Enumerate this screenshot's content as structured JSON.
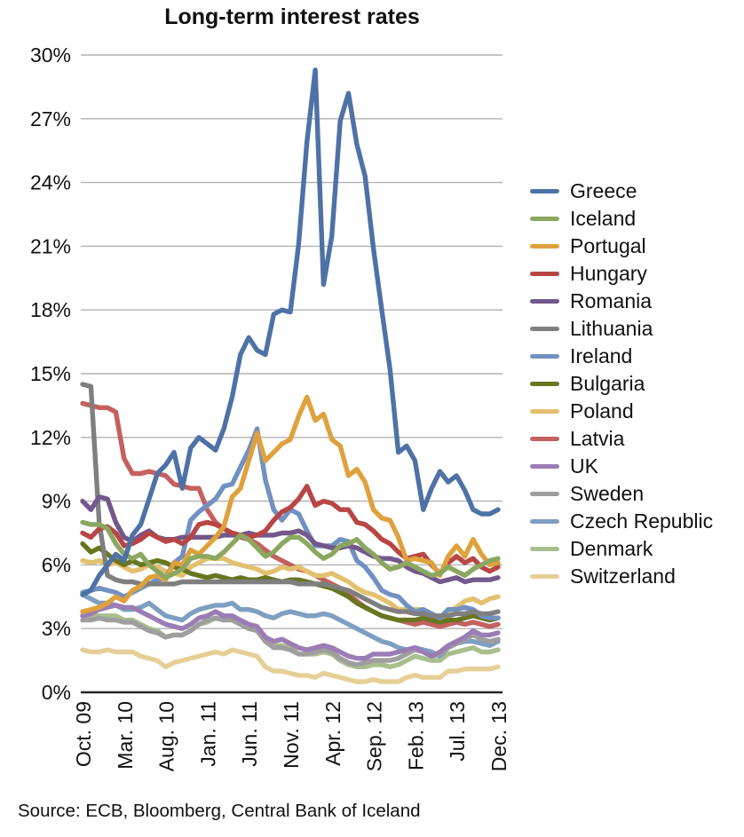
{
  "title": "Long-term interest rates",
  "source": {
    "text": "Source: ECB, Bloomberg, Central Bank of Iceland"
  },
  "chart_data": {
    "type": "line",
    "title": "Long-term interest rates",
    "grid": true,
    "legend_position": "right",
    "y_axis": {
      "min": 0,
      "max": 30,
      "step": 3,
      "tick_labels": [
        "30%",
        "27%",
        "24%",
        "21%",
        "18%",
        "15%",
        "12%",
        "9%",
        "6%",
        "3%",
        "0%"
      ]
    },
    "x_axis": {
      "n_points": 51,
      "months_between_ticks": 5,
      "tick_labels": [
        "Oct. 09",
        "Mar. 10",
        "Aug. 10",
        "Jan. 11",
        "Jun. 11",
        "Nov. 11",
        "Apr. 12",
        "Sep. 12",
        "Feb. 13",
        "Jul. 13",
        "Dec. 13"
      ]
    },
    "series": [
      {
        "name": "Greece",
        "color": "#4E72A6",
        "values": [
          4.6,
          4.8,
          5.5,
          6.0,
          6.5,
          6.2,
          7.4,
          7.9,
          9.1,
          10.3,
          10.7,
          11.3,
          9.6,
          11.5,
          12.0,
          11.7,
          11.4,
          12.4,
          13.9,
          15.9,
          16.7,
          16.1,
          15.9,
          17.8,
          18.0,
          17.9,
          21.1,
          25.9,
          29.3,
          19.2,
          21.5,
          26.9,
          28.2,
          25.8,
          24.3,
          20.9,
          18.0,
          15.2,
          11.3,
          11.6,
          10.9,
          8.6,
          9.6,
          10.4,
          9.9,
          10.2,
          9.5,
          8.6,
          8.4,
          8.4,
          8.6
        ]
      },
      {
        "name": "Iceland",
        "color": "#8BA760",
        "values": [
          8.0,
          7.9,
          7.9,
          7.7,
          7.0,
          6.5,
          6.3,
          6.5,
          6.0,
          5.7,
          5.4,
          5.6,
          5.8,
          6.3,
          6.4,
          6.4,
          6.3,
          6.6,
          7.0,
          7.4,
          7.2,
          6.8,
          6.4,
          6.6,
          7.0,
          7.3,
          7.3,
          7.0,
          6.6,
          6.3,
          6.5,
          6.9,
          7.0,
          7.2,
          6.8,
          6.5,
          6.1,
          5.8,
          5.9,
          6.1,
          5.9,
          5.7,
          5.5,
          5.6,
          5.9,
          5.7,
          5.5,
          5.8,
          6.0,
          6.2,
          6.3
        ]
      },
      {
        "name": "Portugal",
        "color": "#DFA13C",
        "values": [
          3.8,
          3.9,
          4.0,
          4.2,
          4.5,
          4.3,
          4.8,
          5.0,
          5.4,
          5.5,
          5.3,
          6.1,
          6.0,
          6.7,
          6.5,
          6.9,
          7.3,
          7.8,
          9.2,
          9.6,
          10.9,
          12.2,
          10.9,
          11.3,
          11.7,
          11.9,
          13.0,
          13.9,
          12.8,
          13.1,
          11.9,
          11.6,
          10.2,
          10.5,
          9.9,
          8.6,
          8.2,
          8.1,
          7.3,
          6.2,
          6.3,
          6.2,
          6.1,
          5.5,
          6.4,
          6.9,
          6.4,
          7.2,
          6.5,
          6.0,
          6.1
        ]
      },
      {
        "name": "Hungary",
        "color": "#B84645",
        "values": [
          7.5,
          7.3,
          7.7,
          7.8,
          7.5,
          6.9,
          7.0,
          7.2,
          7.5,
          7.3,
          7.1,
          7.2,
          7.0,
          7.3,
          7.9,
          8.0,
          7.9,
          7.7,
          7.5,
          7.4,
          7.3,
          7.4,
          7.6,
          8.1,
          8.5,
          8.7,
          9.1,
          9.7,
          8.8,
          9.0,
          8.9,
          8.6,
          8.6,
          8.0,
          7.9,
          7.6,
          7.2,
          7.0,
          6.6,
          6.3,
          6.4,
          6.5,
          6.0,
          5.6,
          6.1,
          6.4,
          6.1,
          6.3,
          5.9,
          5.7,
          5.9
        ]
      },
      {
        "name": "Romania",
        "color": "#73588C",
        "values": [
          9.0,
          8.6,
          9.2,
          9.1,
          8.0,
          7.3,
          7.1,
          7.4,
          7.6,
          7.3,
          7.2,
          7.2,
          7.3,
          7.3,
          7.3,
          7.3,
          7.3,
          7.4,
          7.4,
          7.4,
          7.5,
          7.4,
          7.4,
          7.4,
          7.5,
          7.5,
          7.6,
          7.4,
          7.0,
          6.9,
          6.8,
          6.8,
          6.9,
          6.8,
          6.6,
          6.4,
          6.3,
          6.3,
          6.2,
          5.9,
          5.7,
          5.6,
          5.4,
          5.2,
          5.3,
          5.4,
          5.2,
          5.3,
          5.3,
          5.3,
          5.4
        ]
      },
      {
        "name": "Lithuania",
        "color": "#7F7F7F",
        "values": [
          14.5,
          14.4,
          8.0,
          5.5,
          5.3,
          5.2,
          5.2,
          5.1,
          5.1,
          5.1,
          5.1,
          5.1,
          5.2,
          5.2,
          5.2,
          5.2,
          5.2,
          5.2,
          5.2,
          5.2,
          5.2,
          5.2,
          5.2,
          5.2,
          5.2,
          5.2,
          5.1,
          5.1,
          5.1,
          5.1,
          5.0,
          4.9,
          4.8,
          4.6,
          4.4,
          4.2,
          4.0,
          3.9,
          3.8,
          3.8,
          3.7,
          3.7,
          3.6,
          3.6,
          3.6,
          3.7,
          3.7,
          3.8,
          3.7,
          3.7,
          3.8
        ]
      },
      {
        "name": "Ireland",
        "color": "#7191C1",
        "values": [
          4.7,
          4.8,
          4.9,
          4.8,
          4.7,
          4.5,
          4.7,
          4.9,
          5.1,
          5.3,
          5.4,
          6.1,
          6.4,
          8.1,
          8.5,
          8.8,
          9.1,
          9.7,
          9.8,
          10.6,
          11.4,
          12.4,
          10.0,
          8.6,
          8.1,
          8.6,
          8.4,
          7.6,
          6.9,
          6.9,
          6.9,
          7.2,
          7.1,
          6.2,
          5.9,
          5.4,
          4.8,
          4.6,
          4.5,
          4.1,
          3.8,
          3.9,
          3.7,
          3.5,
          3.9,
          3.9,
          4.0,
          3.9,
          3.6,
          3.5,
          3.5
        ]
      },
      {
        "name": "Bulgaria",
        "color": "#67761F",
        "values": [
          7.0,
          6.6,
          6.8,
          6.5,
          6.2,
          6.0,
          6.2,
          6.0,
          6.1,
          6.2,
          6.1,
          5.9,
          5.8,
          5.6,
          5.5,
          5.4,
          5.5,
          5.4,
          5.3,
          5.4,
          5.3,
          5.3,
          5.4,
          5.3,
          5.2,
          5.3,
          5.3,
          5.2,
          5.1,
          5.0,
          4.9,
          4.7,
          4.5,
          4.2,
          4.0,
          3.8,
          3.6,
          3.5,
          3.4,
          3.4,
          3.4,
          3.5,
          3.4,
          3.3,
          3.4,
          3.4,
          3.5,
          3.6,
          3.5,
          3.4,
          3.5
        ]
      },
      {
        "name": "Poland",
        "color": "#E2C06E",
        "values": [
          6.2,
          6.1,
          6.2,
          6.0,
          6.1,
          5.9,
          5.7,
          5.8,
          6.0,
          5.9,
          5.7,
          5.6,
          5.5,
          5.9,
          6.1,
          6.3,
          6.3,
          6.3,
          6.1,
          6.0,
          5.9,
          5.8,
          5.6,
          5.7,
          5.9,
          5.8,
          5.9,
          5.7,
          5.5,
          5.5,
          5.6,
          5.4,
          5.2,
          4.9,
          4.7,
          4.6,
          4.4,
          4.2,
          3.9,
          3.9,
          3.9,
          3.9,
          3.6,
          3.3,
          3.8,
          4.0,
          4.3,
          4.4,
          4.2,
          4.4,
          4.5
        ]
      },
      {
        "name": "Latvia",
        "color": "#C4605E",
        "values": [
          13.6,
          13.5,
          13.4,
          13.4,
          13.2,
          11.0,
          10.3,
          10.3,
          10.4,
          10.3,
          10.2,
          9.8,
          9.7,
          9.6,
          9.6,
          8.6,
          8.0,
          7.7,
          7.5,
          7.3,
          7.2,
          7.0,
          6.7,
          6.4,
          6.2,
          6.0,
          5.8,
          5.7,
          5.5,
          5.3,
          5.1,
          4.9,
          4.6,
          4.3,
          4.0,
          3.8,
          3.6,
          3.5,
          3.4,
          3.3,
          3.2,
          3.3,
          3.2,
          3.1,
          3.2,
          3.3,
          3.2,
          3.3,
          3.2,
          3.1,
          3.2
        ]
      },
      {
        "name": "UK",
        "color": "#9B7DB5",
        "values": [
          3.6,
          3.7,
          3.9,
          4.0,
          4.1,
          4.0,
          4.0,
          3.8,
          3.6,
          3.4,
          3.2,
          3.1,
          3.0,
          3.2,
          3.5,
          3.6,
          3.8,
          3.6,
          3.6,
          3.4,
          3.2,
          3.1,
          2.6,
          2.4,
          2.5,
          2.3,
          2.1,
          2.0,
          2.1,
          2.2,
          2.1,
          1.9,
          1.7,
          1.6,
          1.6,
          1.8,
          1.8,
          1.8,
          1.9,
          2.0,
          2.1,
          1.9,
          1.7,
          1.9,
          2.2,
          2.4,
          2.6,
          2.9,
          2.7,
          2.7,
          2.8
        ]
      },
      {
        "name": "Sweden",
        "color": "#9E9E9E",
        "values": [
          3.4,
          3.4,
          3.5,
          3.4,
          3.4,
          3.3,
          3.3,
          3.1,
          2.9,
          2.8,
          2.6,
          2.7,
          2.7,
          2.9,
          3.2,
          3.4,
          3.5,
          3.4,
          3.4,
          3.2,
          3.0,
          2.9,
          2.4,
          2.1,
          2.1,
          2.0,
          1.8,
          1.8,
          1.9,
          2.0,
          1.9,
          1.6,
          1.4,
          1.3,
          1.4,
          1.5,
          1.5,
          1.5,
          1.6,
          1.8,
          2.0,
          1.9,
          1.7,
          1.8,
          2.1,
          2.3,
          2.5,
          2.7,
          2.5,
          2.4,
          2.5
        ]
      },
      {
        "name": "Czech Republic",
        "color": "#7E9FC1",
        "values": [
          4.6,
          4.4,
          4.2,
          4.2,
          4.1,
          3.9,
          3.9,
          4.0,
          4.2,
          3.9,
          3.6,
          3.5,
          3.4,
          3.7,
          3.9,
          4.0,
          4.1,
          4.1,
          4.2,
          3.9,
          3.9,
          3.8,
          3.6,
          3.5,
          3.7,
          3.8,
          3.7,
          3.6,
          3.6,
          3.7,
          3.6,
          3.4,
          3.2,
          3.0,
          2.8,
          2.6,
          2.4,
          2.3,
          2.1,
          2.0,
          2.1,
          2.0,
          1.9,
          1.7,
          2.1,
          2.3,
          2.4,
          2.4,
          2.3,
          2.2,
          2.4
        ]
      },
      {
        "name": "Denmark",
        "color": "#A9BE8D",
        "values": [
          3.6,
          3.6,
          3.6,
          3.6,
          3.6,
          3.4,
          3.4,
          3.2,
          3.0,
          2.9,
          2.6,
          2.7,
          2.7,
          2.9,
          3.2,
          3.3,
          3.5,
          3.4,
          3.5,
          3.3,
          3.2,
          3.0,
          2.5,
          2.2,
          2.2,
          2.1,
          1.8,
          1.8,
          1.8,
          1.9,
          1.8,
          1.5,
          1.3,
          1.2,
          1.2,
          1.3,
          1.3,
          1.2,
          1.3,
          1.5,
          1.7,
          1.6,
          1.5,
          1.5,
          1.8,
          1.9,
          2.0,
          2.1,
          1.9,
          1.9,
          2.0
        ]
      },
      {
        "name": "Switzerland",
        "color": "#E5CF97",
        "values": [
          2.0,
          1.9,
          1.9,
          2.0,
          1.9,
          1.9,
          1.9,
          1.7,
          1.6,
          1.5,
          1.2,
          1.4,
          1.5,
          1.6,
          1.7,
          1.8,
          1.9,
          1.8,
          2.0,
          1.9,
          1.8,
          1.7,
          1.2,
          1.0,
          1.0,
          0.9,
          0.8,
          0.8,
          0.7,
          0.9,
          0.8,
          0.7,
          0.6,
          0.5,
          0.5,
          0.6,
          0.5,
          0.5,
          0.5,
          0.7,
          0.8,
          0.7,
          0.7,
          0.7,
          1.0,
          1.0,
          1.1,
          1.1,
          1.1,
          1.1,
          1.2
        ]
      }
    ]
  }
}
